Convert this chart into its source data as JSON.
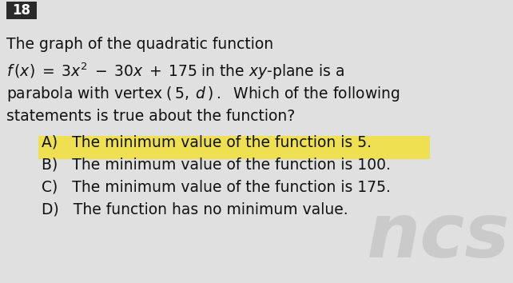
{
  "background_color": "#e0e0e0",
  "question_number": "18",
  "question_number_bg": "#2a2a2a",
  "question_number_color": "#ffffff",
  "line1": "The graph of the quadratic function",
  "line3": "parabola with vertex ( 5,  d )  .  Which of the following",
  "line4": "statements is true about the function?",
  "optionA": "A)   The minimum value of the function is 5.",
  "optionB": "B)   The minimum value of the function is 100.",
  "optionC": "C)   The minimum value of the function is 175.",
  "optionD": "D)   The function has no minimum value.",
  "highlight_color": "#f0e040",
  "text_color": "#111111",
  "font_size_main": 13.5,
  "font_size_options": 13.5,
  "watermark_text": "ncs",
  "watermark_color": "#b0b0b0",
  "watermark_alpha": 0.45
}
